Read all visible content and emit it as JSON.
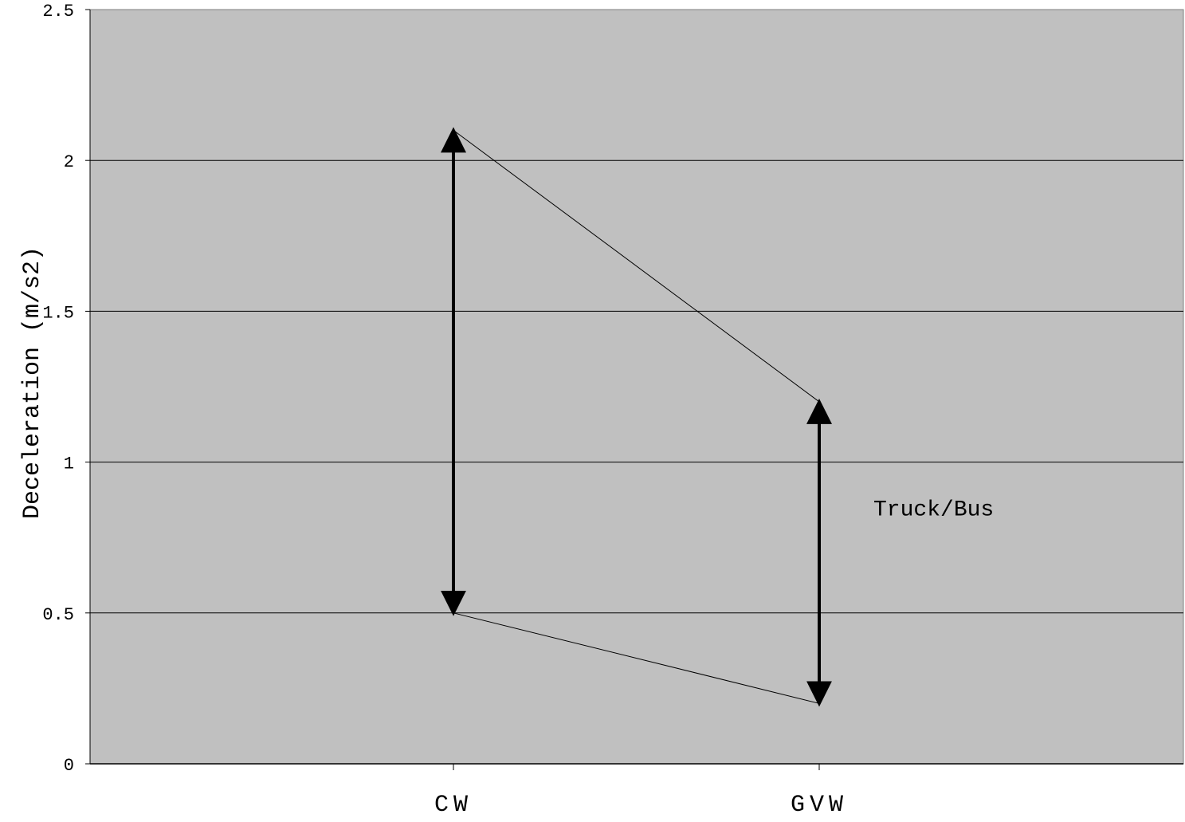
{
  "chart_data": {
    "type": "line",
    "title": "",
    "xlabel": "",
    "ylabel": "Deceleration (m/s2)",
    "categories": [
      "CW",
      "GVW"
    ],
    "series": [
      {
        "values": [
          2.1,
          1.2
        ]
      },
      {
        "values": [
          0.5,
          0.2
        ]
      }
    ],
    "ranges": [
      {
        "category": "CW",
        "low": 0.5,
        "high": 2.1
      },
      {
        "category": "GVW",
        "low": 0.2,
        "high": 1.2
      }
    ],
    "annotations": [
      {
        "text": "Truck/Bus",
        "x": "GVW",
        "y": 0.85
      }
    ],
    "ylim": [
      0,
      2.5
    ],
    "yticks": [
      0,
      0.5,
      1,
      1.5,
      2,
      2.5
    ],
    "ytick_labels": [
      "0",
      "0.5",
      "1",
      "1.5",
      "2",
      "2.5"
    ],
    "grid": true,
    "legend": "none",
    "colors": {
      "plot_background": "#c0c0c0",
      "line": "#000000",
      "page_background": "#ffffff"
    }
  }
}
